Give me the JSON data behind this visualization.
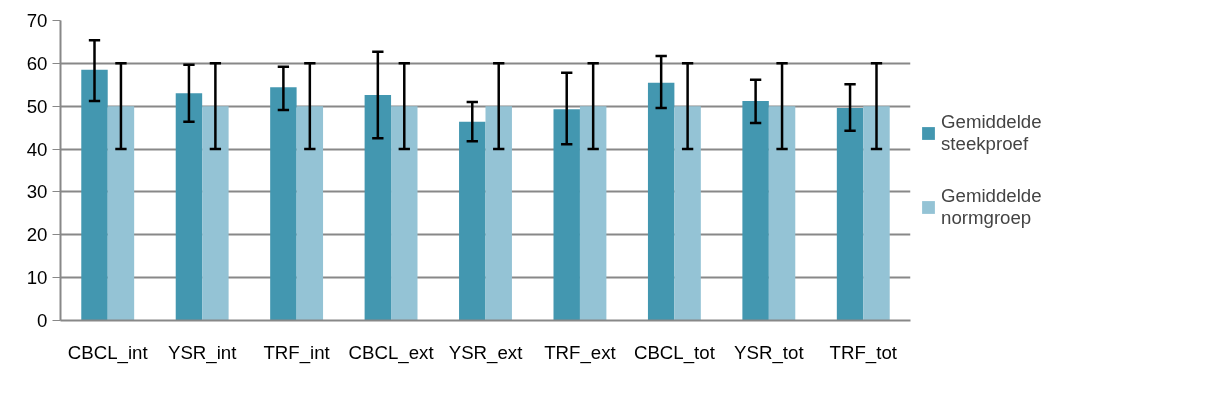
{
  "chart_data": {
    "type": "bar",
    "categories": [
      "CBCL_int",
      "YSR_int",
      "TRF_int",
      "CBCL_ext",
      "YSR_ext",
      "TRF_ext",
      "CBCL_tot",
      "YSR_tot",
      "TRF_tot"
    ],
    "series": [
      {
        "name": "Gemiddelde steekproef",
        "color": "#4397b0",
        "values": [
          58.5,
          53,
          54.4,
          52.6,
          46.4,
          49.3,
          55.5,
          51.2,
          49.6
        ],
        "errors": [
          [
            51.2,
            65.4
          ],
          [
            46.4,
            59.7
          ],
          [
            49.1,
            59.2
          ],
          [
            42.5,
            62.7
          ],
          [
            41.8,
            51
          ],
          [
            41.1,
            57.8
          ],
          [
            49.6,
            61.7
          ],
          [
            46.1,
            56.2
          ],
          [
            44.3,
            55.1
          ]
        ]
      },
      {
        "name": "Gemiddelde normgroep",
        "color": "#94c3d5",
        "values": [
          50,
          50,
          50,
          50,
          50,
          50,
          50,
          50,
          50
        ],
        "errors": [
          [
            40,
            60
          ],
          [
            40,
            60
          ],
          [
            40,
            60
          ],
          [
            40,
            60
          ],
          [
            40,
            60
          ],
          [
            40,
            60
          ],
          [
            40,
            60
          ],
          [
            40,
            60
          ],
          [
            40,
            60
          ]
        ]
      }
    ],
    "ylim": [
      0,
      70
    ],
    "yticks": [
      0,
      10,
      20,
      30,
      40,
      50,
      60,
      70
    ],
    "grid": "y",
    "legend": "right"
  }
}
